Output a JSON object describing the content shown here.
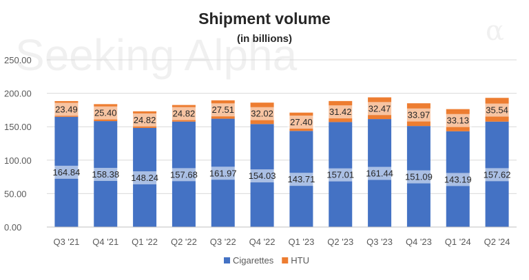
{
  "chart_data": {
    "type": "bar",
    "stacked": true,
    "title": "Shipment volume",
    "subtitle": "(in billions)",
    "watermark": "Seeking Alpha",
    "watermark_glyph": "α",
    "categories": [
      "Q3 '21",
      "Q4 '21",
      "Q1 '22",
      "Q2 '22",
      "Q3 '22",
      "Q4 '22",
      "Q1 '23",
      "Q2 '23",
      "Q3 '23",
      "Q4 '23",
      "Q1 '24",
      "Q2 '24"
    ],
    "series": [
      {
        "name": "Cigarettes",
        "color": "#4472C4",
        "values": [
          164.84,
          158.38,
          148.24,
          157.68,
          161.97,
          154.03,
          143.71,
          157.01,
          161.44,
          151.09,
          143.19,
          157.62
        ],
        "labels": [
          "164.84",
          "158.38",
          "148.24",
          "157.68",
          "161.97",
          "154.03",
          "143.71",
          "157.01",
          "161.44",
          "151.09",
          "143.19",
          "157.62"
        ]
      },
      {
        "name": "HTU",
        "color": "#ED7D31",
        "values": [
          23.49,
          25.4,
          24.82,
          24.82,
          27.51,
          32.02,
          27.4,
          31.42,
          32.47,
          33.97,
          33.13,
          35.54
        ],
        "labels": [
          "23.49",
          "25.40",
          "24.82",
          "24.82",
          "27.51",
          "32.02",
          "27.40",
          "31.42",
          "32.47",
          "33.97",
          "33.13",
          "35.54"
        ]
      }
    ],
    "ylim": [
      0,
      250
    ],
    "yticks": [
      "0.00",
      "50.00",
      "100.00",
      "150.00",
      "200.00",
      "250.00"
    ],
    "xlabel": "",
    "ylabel": "",
    "grid": true,
    "legend_position": "bottom"
  }
}
